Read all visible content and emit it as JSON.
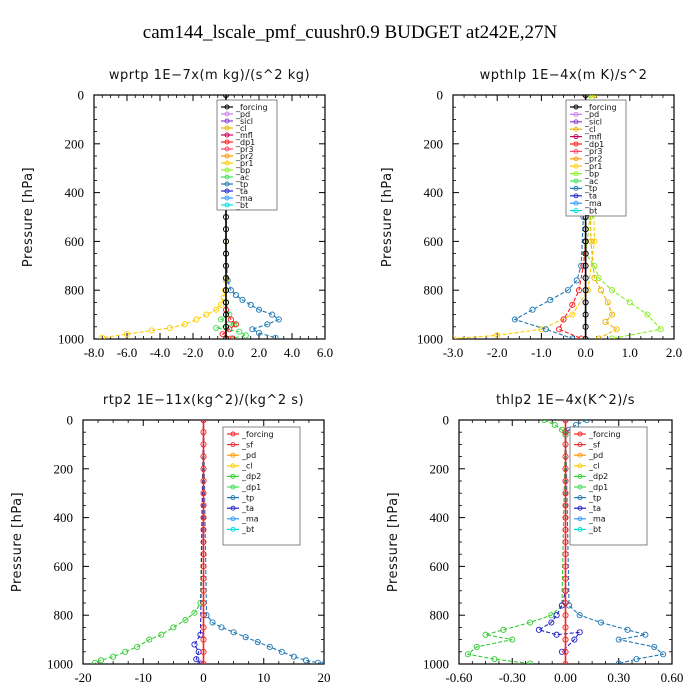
{
  "figure": {
    "title": "cam144_lscale_pmf_cuushr0.9  BUDGET at242E,27N"
  },
  "colors": {
    "forcing": "#000000",
    "forcing_red": "#ff2020",
    "pd": "#c77de8",
    "sicl": "#8a3fd1",
    "cl": "#e8b400",
    "mfl": "#c4005a",
    "dp1": "#ff1a1a",
    "dp2": "#33cc33",
    "pr3": "#ff4466",
    "pr2": "#ff9900",
    "pr1": "#ffcc00",
    "bp": "#88ee22",
    "ac": "#44dd55",
    "tp": "#1f78b4",
    "ta": "#2222cc",
    "ma": "#3399ff",
    "bt": "#00dddd",
    "sf": "#e0302f"
  },
  "chart_data": [
    {
      "id": "wprtp",
      "type": "line",
      "title": "wprtp   1E−7x(m kg)/(s^2 kg)",
      "ylabel": "Pressure [hPa]",
      "xlim": [
        -8,
        6
      ],
      "ylim": [
        1000,
        0
      ],
      "xticks": [
        -8,
        -6,
        -4,
        -2,
        0,
        2,
        4,
        6
      ],
      "xtick_labels": [
        "-8.0",
        "-6.0",
        "-4.0",
        "-2.0",
        "0.0",
        "2.0",
        "4.0",
        "6.0"
      ],
      "yticks": [
        0,
        200,
        400,
        600,
        800,
        1000
      ],
      "ytick_labels": [
        "0",
        "200",
        "400",
        "600",
        "800",
        "1000"
      ],
      "legend": [
        "_forcing",
        "_pd",
        "_sicl",
        "_cl",
        "_mfl",
        "_dp1",
        "_pr3",
        "_pr2",
        "_pr1",
        "_bp",
        "_ac",
        "_tp",
        "_ta",
        "_ma",
        "_bt"
      ],
      "legend_keys": [
        "forcing",
        "pd",
        "sicl",
        "cl",
        "mfl",
        "dp1",
        "pr3",
        "pr2",
        "pr1",
        "bp",
        "ac",
        "tp",
        "ta",
        "ma",
        "bt"
      ],
      "legend_placement": "top-right",
      "series": [
        {
          "name": "_pr1",
          "color_key": "pr1",
          "x": [
            0,
            0,
            0,
            -0.05,
            -0.15,
            -0.3,
            -0.6,
            -1.2,
            -1.8,
            -2.5,
            -3.4,
            -4.5,
            -6.0,
            -7.5
          ],
          "y": [
            0,
            600,
            760,
            800,
            830,
            860,
            880,
            900,
            920,
            940,
            955,
            965,
            980,
            995
          ]
        },
        {
          "name": "_tp",
          "color_key": "tp",
          "x": [
            0,
            0,
            0.1,
            0.3,
            0.6,
            1.0,
            1.5,
            2.0,
            2.8,
            3.2,
            2.5,
            1.6,
            2.0,
            3.0
          ],
          "y": [
            0,
            650,
            760,
            800,
            820,
            840,
            860,
            880,
            900,
            920,
            940,
            960,
            975,
            995
          ]
        },
        {
          "name": "_ac",
          "color_key": "ac",
          "x": [
            0,
            0,
            0.2,
            -0.3,
            0.5,
            -0.6,
            0.8,
            1.2,
            0.3
          ],
          "y": [
            0,
            850,
            900,
            920,
            940,
            955,
            970,
            985,
            998
          ]
        },
        {
          "name": "_dp1",
          "color_key": "dp1",
          "x": [
            0,
            0,
            0.3,
            0.6,
            0.2,
            -0.2,
            0.4
          ],
          "y": [
            0,
            880,
            920,
            940,
            960,
            980,
            998
          ]
        },
        {
          "name": "_forcing",
          "color_key": "forcing",
          "x": [
            0,
            0,
            0,
            0,
            0,
            0,
            0,
            0,
            0,
            0,
            0,
            0,
            0,
            0,
            0,
            0,
            0,
            0,
            0,
            0,
            0
          ],
          "y": [
            0,
            50,
            100,
            150,
            200,
            250,
            300,
            350,
            400,
            450,
            500,
            550,
            600,
            650,
            700,
            750,
            800,
            850,
            900,
            950,
            1000
          ]
        }
      ]
    },
    {
      "id": "wpthlp",
      "type": "line",
      "title": "wpthlp   1E−4x(m K)/s^2",
      "ylabel": "Pressure [hPa]",
      "xlim": [
        -3,
        2
      ],
      "ylim": [
        1000,
        0
      ],
      "xticks": [
        -3,
        -2,
        -1,
        0,
        1,
        2
      ],
      "xtick_labels": [
        "-3.0",
        "-2.0",
        "-1.0",
        "0.0",
        "1.0",
        "2.0"
      ],
      "yticks": [
        0,
        200,
        400,
        600,
        800,
        1000
      ],
      "ytick_labels": [
        "0",
        "200",
        "400",
        "600",
        "800",
        "1000"
      ],
      "legend": [
        "_forcing",
        "_pd",
        "_sicl",
        "_cl",
        "_mfl",
        "_dp1",
        "_pr3",
        "_pr2",
        "_pr1",
        "_bp",
        "_ac",
        "_tp",
        "_ta",
        "_ma",
        "_bt"
      ],
      "legend_keys": [
        "forcing",
        "pd",
        "sicl",
        "cl",
        "mfl",
        "dp1",
        "pr3",
        "pr2",
        "pr1",
        "bp",
        "ac",
        "tp",
        "ta",
        "ma",
        "bt"
      ],
      "legend_placement": "top-right",
      "series": [
        {
          "name": "_pr1",
          "color_key": "pr1",
          "x": [
            0.1,
            0.15,
            0.2,
            0.05,
            -0.3,
            -1.0,
            -2.0,
            -3.0
          ],
          "y": [
            0,
            200,
            600,
            800,
            900,
            960,
            985,
            998
          ]
        },
        {
          "name": "_cl",
          "color_key": "cl",
          "x": [
            0.2,
            0.15,
            0.1,
            0.12,
            0.2,
            0.35,
            0.5,
            0.6,
            0.45,
            0.7,
            0.3
          ],
          "y": [
            0,
            100,
            300,
            600,
            750,
            800,
            850,
            900,
            930,
            960,
            998
          ]
        },
        {
          "name": "_bp",
          "color_key": "bp",
          "x": [
            0.1,
            0.05,
            0.1,
            0.0,
            0.2,
            0.3,
            0.6,
            1.0,
            1.4,
            1.7,
            0.6
          ],
          "y": [
            0,
            300,
            500,
            650,
            700,
            750,
            800,
            850,
            900,
            960,
            998
          ]
        },
        {
          "name": "_tp",
          "color_key": "tp",
          "x": [
            0.0,
            -0.05,
            -0.1,
            -0.2,
            -0.4,
            -0.8,
            -1.2,
            -1.6,
            -0.9,
            -0.3
          ],
          "y": [
            0,
            500,
            700,
            760,
            800,
            840,
            880,
            920,
            960,
            998
          ]
        },
        {
          "name": "_dp1",
          "color_key": "dp1",
          "x": [
            0,
            0,
            -0.05,
            -0.15,
            -0.3,
            -0.5,
            -0.6,
            -0.1
          ],
          "y": [
            0,
            600,
            700,
            800,
            860,
            920,
            960,
            998
          ]
        },
        {
          "name": "_forcing",
          "color_key": "forcing",
          "x": [
            0,
            0,
            0,
            0,
            0,
            0,
            0,
            0,
            0,
            0,
            0,
            0,
            0,
            0,
            0,
            0,
            0,
            0,
            0,
            0,
            0
          ],
          "y": [
            0,
            50,
            100,
            150,
            200,
            250,
            300,
            350,
            400,
            450,
            500,
            550,
            600,
            650,
            700,
            750,
            800,
            850,
            900,
            950,
            1000
          ]
        }
      ]
    },
    {
      "id": "rtp2",
      "type": "line",
      "title": "rtp2   1E−11x(kg^2)/(kg^2 s)",
      "ylabel": "Pressure [hPa]",
      "xlim": [
        -20,
        20
      ],
      "ylim": [
        1000,
        0
      ],
      "xticks": [
        -20,
        -10,
        0,
        10,
        20
      ],
      "xtick_labels": [
        "-20",
        "-10",
        "0",
        "10",
        "20"
      ],
      "yticks": [
        0,
        200,
        400,
        600,
        800,
        1000
      ],
      "ytick_labels": [
        "0",
        "200",
        "400",
        "600",
        "800",
        "1000"
      ],
      "legend": [
        "_forcing",
        "_sf",
        "_pd",
        "_cl",
        "_dp2",
        "_dp1",
        "_tp",
        "_ta",
        "_ma",
        "_bt"
      ],
      "legend_keys": [
        "forcing_red",
        "sf",
        "pr2",
        "pr1",
        "dp2",
        "ac",
        "tp",
        "ta",
        "ma",
        "bt"
      ],
      "legend_placement": "top-right",
      "series": [
        {
          "name": "_dp2",
          "color_key": "dp2",
          "x": [
            0,
            -0.5,
            -1.5,
            -3,
            -5,
            -7,
            -9,
            -11,
            -13,
            -15,
            -17,
            -18
          ],
          "y": [
            0,
            750,
            790,
            820,
            850,
            880,
            900,
            930,
            950,
            970,
            985,
            995
          ]
        },
        {
          "name": "_tp",
          "color_key": "tp",
          "x": [
            0,
            0.5,
            1.5,
            3,
            5,
            7,
            9,
            11,
            13,
            15,
            17,
            19,
            20
          ],
          "y": [
            0,
            800,
            830,
            850,
            870,
            890,
            910,
            930,
            950,
            970,
            985,
            995,
            1000
          ]
        },
        {
          "name": "_ta",
          "color_key": "ta",
          "x": [
            0,
            -0.5,
            -1.5,
            -0.8,
            -1.2,
            -0.5
          ],
          "y": [
            0,
            880,
            920,
            950,
            980,
            998
          ]
        },
        {
          "name": "_forcing",
          "color_key": "forcing_red",
          "x": [
            0,
            0,
            0,
            0,
            0,
            0,
            0,
            0,
            0,
            0,
            0,
            0,
            0,
            0,
            0,
            0,
            0,
            0,
            0,
            0,
            0
          ],
          "y": [
            0,
            50,
            100,
            150,
            200,
            250,
            300,
            350,
            400,
            450,
            500,
            550,
            600,
            650,
            700,
            750,
            800,
            850,
            900,
            950,
            1000
          ]
        }
      ]
    },
    {
      "id": "thlp2",
      "type": "line",
      "title": "thlp2   1E−4x(K^2)/s",
      "ylabel": "Pressure [hPa]",
      "xlim": [
        -0.6,
        0.6
      ],
      "ylim": [
        1000,
        0
      ],
      "xticks": [
        -0.6,
        -0.3,
        0,
        0.3,
        0.6
      ],
      "xtick_labels": [
        "-0.60",
        "-0.30",
        "0.00",
        "0.30",
        "0.60"
      ],
      "yticks": [
        0,
        200,
        400,
        600,
        800,
        1000
      ],
      "ytick_labels": [
        "0",
        "200",
        "400",
        "600",
        "800",
        "1000"
      ],
      "legend": [
        "_forcing",
        "_sf",
        "_pd",
        "_cl",
        "_dp2",
        "_dp1",
        "_tp",
        "_ta",
        "_ma",
        "_bt"
      ],
      "legend_keys": [
        "forcing_red",
        "sf",
        "pr2",
        "pr1",
        "dp2",
        "ac",
        "tp",
        "ta",
        "ma",
        "bt"
      ],
      "legend_placement": "top-right",
      "series": [
        {
          "name": "_tp_upper",
          "color_key": "tp",
          "x": [
            0.12,
            0.06,
            0.02,
            0
          ],
          "y": [
            0,
            20,
            40,
            60
          ]
        },
        {
          "name": "_dp2_upper",
          "color_key": "dp2",
          "x": [
            -0.12,
            -0.06,
            -0.02,
            0
          ],
          "y": [
            0,
            20,
            40,
            60
          ]
        },
        {
          "name": "_dp2",
          "color_key": "dp2",
          "x": [
            0,
            -0.02,
            -0.08,
            -0.2,
            -0.35,
            -0.45,
            -0.3,
            -0.5,
            -0.55,
            -0.4,
            -0.2
          ],
          "y": [
            0,
            760,
            800,
            830,
            860,
            880,
            900,
            930,
            960,
            980,
            998
          ]
        },
        {
          "name": "_tp",
          "color_key": "tp",
          "x": [
            0,
            0.02,
            0.08,
            0.2,
            0.35,
            0.45,
            0.3,
            0.5,
            0.55,
            0.4,
            0.3
          ],
          "y": [
            0,
            760,
            800,
            830,
            860,
            880,
            900,
            930,
            960,
            980,
            998
          ]
        },
        {
          "name": "_ta",
          "color_key": "ta",
          "x": [
            0,
            0,
            -0.02,
            -0.05,
            -0.08,
            -0.15,
            -0.05,
            0.08,
            0.05,
            -0.02
          ],
          "y": [
            0,
            700,
            760,
            800,
            830,
            860,
            880,
            870,
            900,
            950
          ]
        },
        {
          "name": "_forcing",
          "color_key": "forcing_red",
          "x": [
            0,
            0,
            0,
            0,
            0,
            0,
            0,
            0,
            0,
            0,
            0,
            0,
            0,
            0,
            0,
            0,
            0,
            0,
            0,
            0,
            0
          ],
          "y": [
            0,
            50,
            100,
            150,
            200,
            250,
            300,
            350,
            400,
            450,
            500,
            550,
            600,
            650,
            700,
            750,
            800,
            850,
            900,
            950,
            1000
          ]
        }
      ]
    }
  ]
}
